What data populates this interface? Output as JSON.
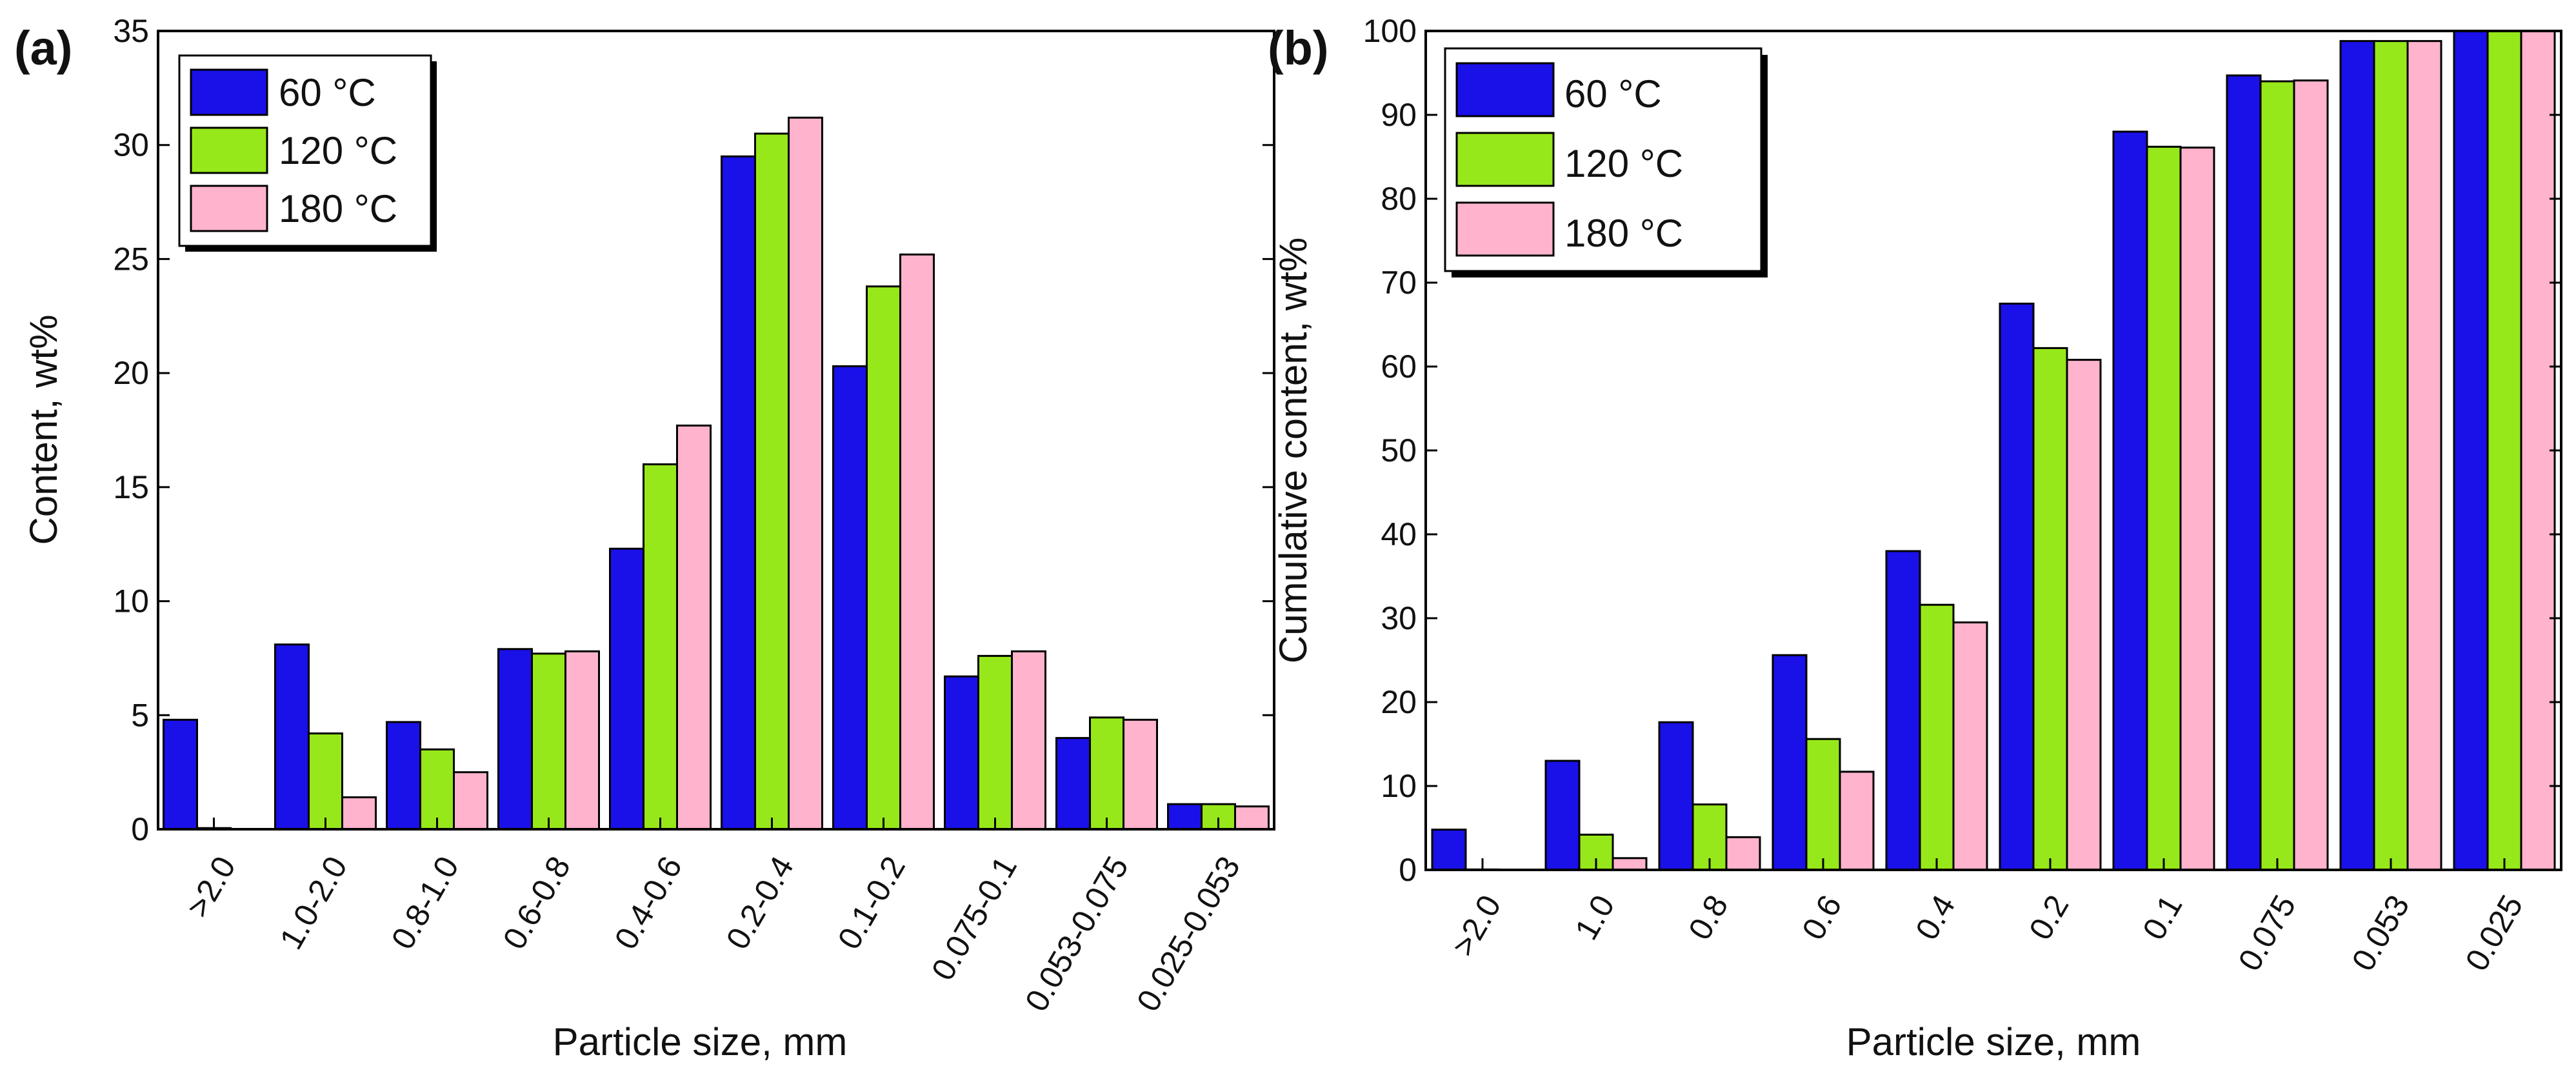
{
  "figure": {
    "panels": [
      "(a)",
      "(b)"
    ]
  },
  "colors": {
    "series": [
      "#1a10e8",
      "#97e81a",
      "#ffb3cc"
    ],
    "stroke": "#000000",
    "background": "#ffffff"
  },
  "chart_data": [
    {
      "type": "bar",
      "panel_label": "(a)",
      "title": "",
      "xlabel": "Particle size, mm",
      "ylabel": "Content, wt%",
      "ylim": [
        0,
        35
      ],
      "yticks": [
        0,
        5,
        10,
        15,
        20,
        25,
        30,
        35
      ],
      "categories": [
        ">2.0",
        "1.0-2.0",
        "0.8-1.0",
        "0.6-0.8",
        "0.4-0.6",
        "0.2-0.4",
        "0.1-0.2",
        "0.075-0.1",
        "0.053-0.075",
        "0.025-0.053"
      ],
      "series": [
        {
          "name": "60 °C",
          "values": [
            4.8,
            8.1,
            4.7,
            7.9,
            12.3,
            29.5,
            20.3,
            6.7,
            4.0,
            1.1
          ]
        },
        {
          "name": "120 °C",
          "values": [
            0.05,
            4.2,
            3.5,
            7.7,
            16.0,
            30.5,
            23.8,
            7.6,
            4.9,
            1.1
          ]
        },
        {
          "name": "180 °C",
          "values": [
            0.0,
            1.4,
            2.5,
            7.8,
            17.7,
            31.2,
            25.2,
            7.8,
            4.8,
            1.0
          ]
        }
      ],
      "legend": "top-left",
      "grid": false
    },
    {
      "type": "bar",
      "panel_label": "(b)",
      "title": "",
      "xlabel": "Particle size, mm",
      "ylabel": "Cumulative content, wt%",
      "ylim": [
        0,
        100
      ],
      "yticks": [
        0,
        10,
        20,
        30,
        40,
        50,
        60,
        70,
        80,
        90,
        100
      ],
      "categories": [
        ">2.0",
        "1.0",
        "0.8",
        "0.6",
        "0.4",
        "0.2",
        "0.1",
        "0.075",
        "0.053",
        "0.025"
      ],
      "series": [
        {
          "name": "60 °C",
          "values": [
            4.8,
            13.0,
            17.6,
            25.6,
            38.0,
            67.5,
            88.0,
            94.7,
            98.8,
            100.0
          ]
        },
        {
          "name": "120 °C",
          "values": [
            0.05,
            4.2,
            7.8,
            15.6,
            31.6,
            62.2,
            86.2,
            94.0,
            98.8,
            100.0
          ]
        },
        {
          "name": "180 °C",
          "values": [
            0.0,
            1.4,
            3.9,
            11.7,
            29.5,
            60.8,
            86.1,
            94.1,
            98.8,
            100.0
          ]
        }
      ],
      "legend": "top-left",
      "grid": false
    }
  ]
}
